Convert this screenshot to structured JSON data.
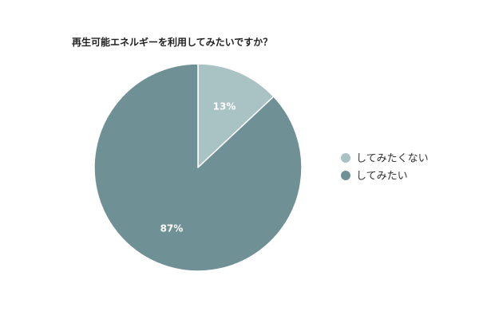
{
  "chart_data": {
    "type": "pie",
    "title": "再生可能エネルギーを利用してみたいですか？",
    "slices": [
      {
        "label": "してみたくない",
        "value": 13,
        "display": "13%",
        "color": "#a9c2c3"
      },
      {
        "label": "してみたい",
        "value": 87,
        "display": "87%",
        "color": "#6f9095"
      }
    ],
    "start_angle": "12 o'clock",
    "direction": "clockwise",
    "legend": {
      "position": "right",
      "items": [
        "してみたくない",
        "してみたい"
      ]
    }
  }
}
